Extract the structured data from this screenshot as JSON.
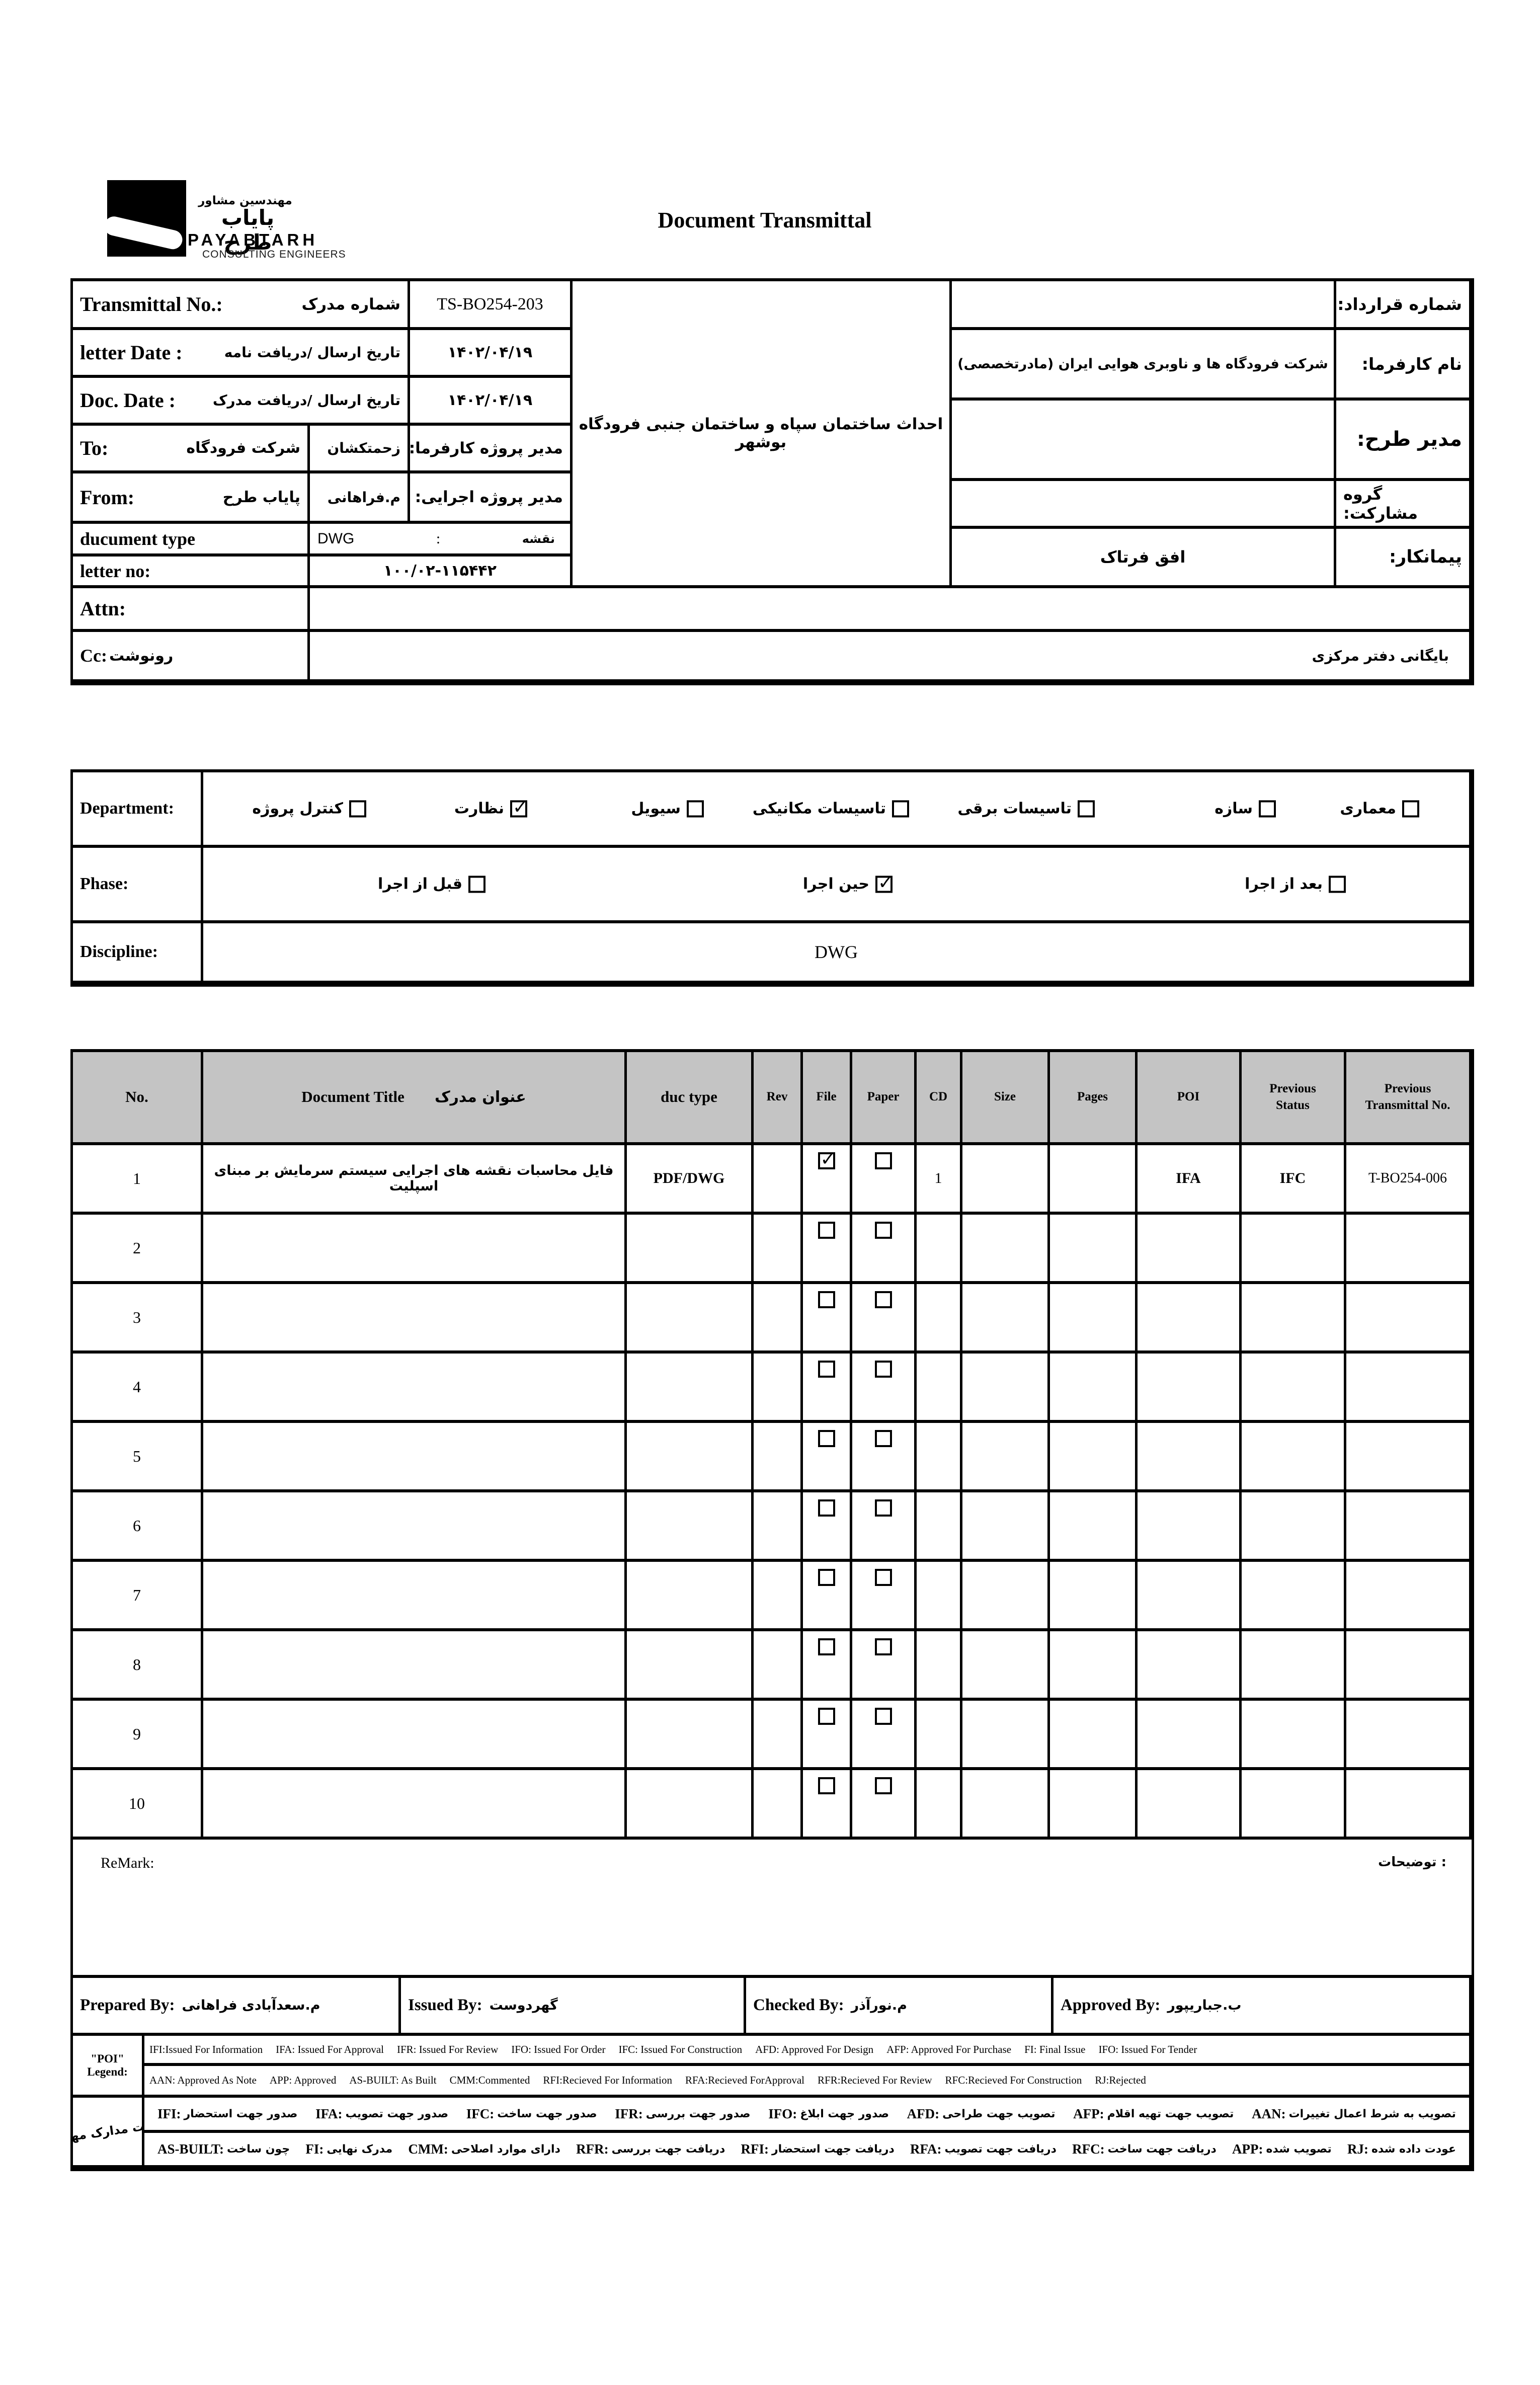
{
  "colors": {
    "line": "#000000",
    "table_header_bg": "#c4c4c4"
  },
  "header": {
    "title": "Document Transmittal",
    "logo": {
      "fa_small": "مهندسین مشاور",
      "fa_big": "پایاب طرح",
      "en": "PAYABTARH",
      "sub": "CONSULTING ENGINEERS"
    }
  },
  "info": {
    "transmittal_no_label_en": "Transmittal No.:",
    "transmittal_no_label_fa": "شماره مدرک",
    "transmittal_no_value": "TS-BO254-203",
    "letter_date_label_en": "letter Date :",
    "letter_date_label_fa": "تاریخ ارسال /دریافت نامه",
    "letter_date_value": "۱۴۰۲/۰۴/۱۹",
    "doc_date_label_en": "Doc. Date :",
    "doc_date_label_fa": "تاریخ ارسال /دریافت مدرک",
    "doc_date_value": "۱۴۰۲/۰۴/۱۹",
    "to_label": "To:",
    "to_value": "شرکت فرودگاه",
    "to_person": "زحمتکشان",
    "client_pm_label": "مدیر پروژه کارفرما:",
    "from_label": "From:",
    "from_value": "پایاب طرح",
    "from_person": "م.فراهانی",
    "exec_pm_label": "مدیر پروژه اجرایی:",
    "doc_type_label": "ducument type",
    "doc_type_value": "DWG",
    "doc_type_colon": ":",
    "doc_type_fa": "نقشه",
    "letter_no_label": "letter no:",
    "letter_no_value": "۱۰۰/۰۲-۱۱۵۴۴۲",
    "attn_label": "Attn:",
    "cc_label": "Cc:",
    "cc_label_fa": "رونوشت",
    "cc_value": "بایگانی دفتر مرکزی",
    "project_desc": "احداث ساختمان سپاه و ساختمان جنبی فرودگاه بوشهر",
    "contract_no_label": "شماره قرارداد:",
    "client_label": "نام کارفرما:",
    "client_value": "شرکت فرودگاه ها و ناوبری هوایی ایران (مادرتخصصی)",
    "design_mgr_label": "مدیر طرح:",
    "jv_label": "گروه مشارکت:",
    "contractor_label": "پیمانکار:",
    "contractor_value": "افق فرتاک"
  },
  "department": {
    "label": "Department:",
    "items": [
      {
        "label": "معماری",
        "checked": false
      },
      {
        "label": "سازه",
        "checked": false
      },
      {
        "label": "تاسیسات برقی",
        "checked": false
      },
      {
        "label": "تاسیسات مکانیکی",
        "checked": false
      },
      {
        "label": "سیویل",
        "checked": false
      },
      {
        "label": "نظارت",
        "checked": true
      },
      {
        "label": "کنترل پروژه",
        "checked": false
      }
    ]
  },
  "phase": {
    "label": "Phase:",
    "items": [
      {
        "label": "بعد از اجرا",
        "checked": false
      },
      {
        "label": "حین اجرا",
        "checked": true
      },
      {
        "label": "قبل از اجرا",
        "checked": false
      }
    ]
  },
  "discipline": {
    "label": "Discipline:",
    "value": "DWG"
  },
  "table": {
    "headers": [
      {
        "en": "No."
      },
      {
        "en": "Document Title",
        "fa": "عنوان مدرک"
      },
      {
        "en": "duc type"
      },
      {
        "en": "Rev"
      },
      {
        "en": "File"
      },
      {
        "en": "Paper"
      },
      {
        "en": "CD"
      },
      {
        "en": "Size"
      },
      {
        "en": "Pages"
      },
      {
        "en": "POI"
      },
      {
        "en": "Previous",
        "en2": "Status"
      },
      {
        "en": "Previous",
        "en2": "Transmittal No."
      }
    ],
    "rows": [
      {
        "no": "1",
        "title": "فایل محاسبات نقشه های اجرایی سیستم سرمایش بر مبنای اسپلیت",
        "duc_type": "PDF/DWG",
        "rev": "",
        "file_checked": true,
        "paper_checked": false,
        "cd": "1",
        "size": "",
        "pages": "",
        "poi": "IFA",
        "prev_status": "IFC",
        "prev_transmittal": "T-BO254-006"
      },
      {
        "no": "2",
        "title": "",
        "duc_type": "",
        "rev": "",
        "file_checked": false,
        "paper_checked": false,
        "cd": "",
        "size": "",
        "pages": "",
        "poi": "",
        "prev_status": "",
        "prev_transmittal": ""
      },
      {
        "no": "3",
        "title": "",
        "duc_type": "",
        "rev": "",
        "file_checked": false,
        "paper_checked": false,
        "cd": "",
        "size": "",
        "pages": "",
        "poi": "",
        "prev_status": "",
        "prev_transmittal": ""
      },
      {
        "no": "4",
        "title": "",
        "duc_type": "",
        "rev": "",
        "file_checked": false,
        "paper_checked": false,
        "cd": "",
        "size": "",
        "pages": "",
        "poi": "",
        "prev_status": "",
        "prev_transmittal": ""
      },
      {
        "no": "5",
        "title": "",
        "duc_type": "",
        "rev": "",
        "file_checked": false,
        "paper_checked": false,
        "cd": "",
        "size": "",
        "pages": "",
        "poi": "",
        "prev_status": "",
        "prev_transmittal": ""
      },
      {
        "no": "6",
        "title": "",
        "duc_type": "",
        "rev": "",
        "file_checked": false,
        "paper_checked": false,
        "cd": "",
        "size": "",
        "pages": "",
        "poi": "",
        "prev_status": "",
        "prev_transmittal": ""
      },
      {
        "no": "7",
        "title": "",
        "duc_type": "",
        "rev": "",
        "file_checked": false,
        "paper_checked": false,
        "cd": "",
        "size": "",
        "pages": "",
        "poi": "",
        "prev_status": "",
        "prev_transmittal": ""
      },
      {
        "no": "8",
        "title": "",
        "duc_type": "",
        "rev": "",
        "file_checked": false,
        "paper_checked": false,
        "cd": "",
        "size": "",
        "pages": "",
        "poi": "",
        "prev_status": "",
        "prev_transmittal": ""
      },
      {
        "no": "9",
        "title": "",
        "duc_type": "",
        "rev": "",
        "file_checked": false,
        "paper_checked": false,
        "cd": "",
        "size": "",
        "pages": "",
        "poi": "",
        "prev_status": "",
        "prev_transmittal": ""
      },
      {
        "no": "10",
        "title": "",
        "duc_type": "",
        "rev": "",
        "file_checked": false,
        "paper_checked": false,
        "cd": "",
        "size": "",
        "pages": "",
        "poi": "",
        "prev_status": "",
        "prev_transmittal": ""
      }
    ]
  },
  "remark": {
    "label_en": "ReMark:",
    "label_fa": "توضیحات :"
  },
  "signatures": [
    {
      "label": "Prepared By:",
      "name": "م.سعدآبادی فراهانی"
    },
    {
      "label": "Issued By:",
      "name": "گهردوست"
    },
    {
      "label": "Checked By:",
      "name": "م.نورآذر"
    },
    {
      "label": "Approved By:",
      "name": "ب.جباریپور"
    }
  ],
  "poi_legend": {
    "label": "\"POI\" Legend:",
    "line1": [
      "IFI:Issued For Information",
      "IFA: Issued For Approval",
      "IFR: Issued For Review",
      "IFO: Issued For Order",
      "IFC: Issued For Construction",
      "AFD: Approved For Design",
      "AFP: Approved For Purchase",
      "FI: Final Issue",
      "IFO: Issued For Tender"
    ],
    "line2": [
      "AAN: Approved As Note",
      "APP: Approved",
      "AS-BUILT: As Built",
      "CMM:Commented",
      "RFI:Recieved For Information",
      "RFA:Recieved ForApproval",
      "RFR:Recieved For Review",
      "RFC:Recieved For Construction",
      "RJ:Rejected"
    ]
  },
  "status_legend": {
    "label": "موقعیت مدارک مهندسی",
    "line1": [
      {
        "code": "IFI:",
        "fa": "صدور جهت استحضار"
      },
      {
        "code": "IFA:",
        "fa": "صدور جهت تصویب"
      },
      {
        "code": "IFC:",
        "fa": "صدور جهت ساخت"
      },
      {
        "code": "IFR:",
        "fa": "صدور جهت بررسی"
      },
      {
        "code": "IFO:",
        "fa": "صدور جهت ابلاغ"
      },
      {
        "code": "AFD:",
        "fa": "تصویب جهت طراحی"
      },
      {
        "code": "AFP:",
        "fa": "تصویب جهت تهیه اقلام"
      },
      {
        "code": "AAN:",
        "fa": "تصویب به شرط اعمال تغییرات"
      }
    ],
    "line2": [
      {
        "code": "AS-BUILT:",
        "fa": "چون ساخت"
      },
      {
        "code": "FI:",
        "fa": "مدرک نهایی"
      },
      {
        "code": "CMM:",
        "fa": "دارای موارد اصلاحی"
      },
      {
        "code": "RFR:",
        "fa": "دریافت جهت بررسی"
      },
      {
        "code": "RFI:",
        "fa": "دریافت جهت استحضار"
      },
      {
        "code": "RFA:",
        "fa": "دریافت جهت تصویب"
      },
      {
        "code": "RFC:",
        "fa": "دریافت جهت ساخت"
      },
      {
        "code": "APP:",
        "fa": "تصویب شده"
      },
      {
        "code": "RJ:",
        "fa": "عودت داده شده"
      }
    ]
  }
}
